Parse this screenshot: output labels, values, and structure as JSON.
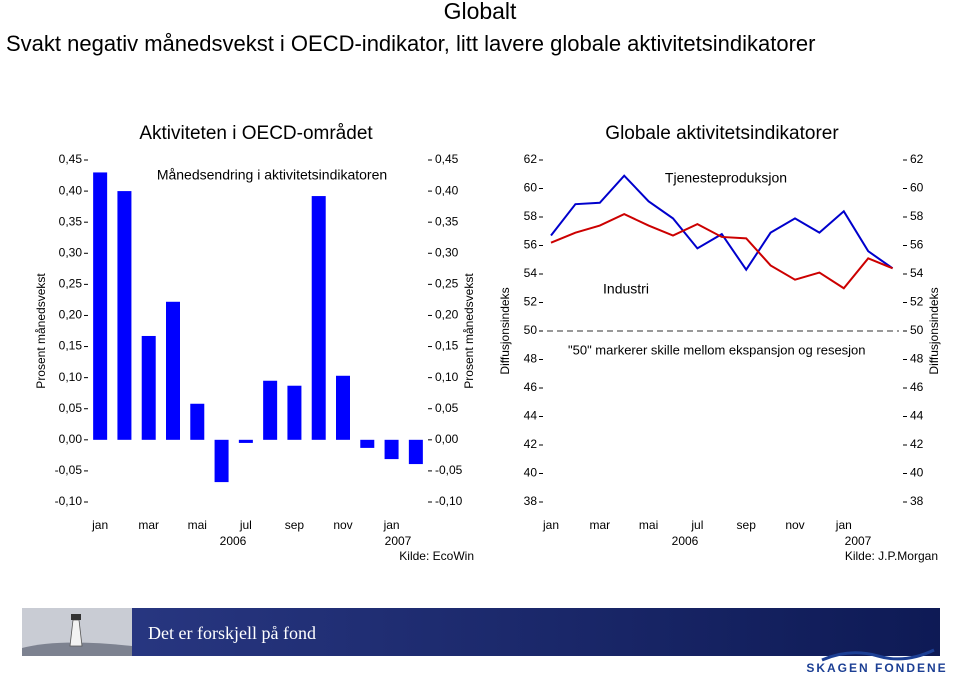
{
  "title": "Globalt",
  "subtitle": "Svakt negativ månedsvekst i OECD-indikator, litt lavere globale aktivitetsindikatorer",
  "chart_data": [
    {
      "type": "bar",
      "title": "Aktiviteten i OECD-området",
      "annotation": "Månedsendring i aktivitetsindikatoren",
      "ylabel": "Prosent månedsvekst",
      "y2label": "Prosent månedsvekst",
      "categories": [
        "jan",
        null,
        "mar",
        null,
        "mai",
        null,
        "jul",
        null,
        "sep",
        null,
        "nov",
        null,
        "jan",
        null
      ],
      "year_labels": [
        "2006",
        "2007"
      ],
      "source": "Kilde: EcoWin",
      "values": [
        0.43,
        0.4,
        0.167,
        0.222,
        0.058,
        -0.068,
        -0.005,
        0.095,
        0.087,
        0.392,
        0.103,
        -0.013,
        -0.031,
        -0.039
      ],
      "color": "#0000ff",
      "ylim": [
        -0.1,
        0.45
      ],
      "yticks": [
        {
          "value": 0.45,
          "label": "0,45"
        },
        {
          "value": 0.4,
          "label": "0,40"
        },
        {
          "value": 0.35,
          "label": "0,35"
        },
        {
          "value": 0.3,
          "label": "0,30"
        },
        {
          "value": 0.25,
          "label": "0,25"
        },
        {
          "value": 0.2,
          "label": "0,20"
        },
        {
          "value": 0.15,
          "label": "0,15"
        },
        {
          "value": 0.1,
          "label": "0,10"
        },
        {
          "value": 0.05,
          "label": "0,05"
        },
        {
          "value": 0,
          "label": "0,00"
        },
        {
          "value": -0.05,
          "label": "-0,05"
        },
        {
          "value": -0.1,
          "label": "-0,10"
        }
      ],
      "y2lim": [
        -0.1,
        0.45
      ],
      "y2ticks": [
        {
          "value": 0.45,
          "label": "0,45"
        },
        {
          "value": 0.4,
          "label": "0,40"
        },
        {
          "value": 0.35,
          "label": "0,35"
        },
        {
          "value": 0.3,
          "label": "0,30"
        },
        {
          "value": 0.25,
          "label": "0,25"
        },
        {
          "value": 0.2,
          "label": "0,20"
        },
        {
          "value": 0.15,
          "label": "0,15"
        },
        {
          "value": 0.1,
          "label": "0,10"
        },
        {
          "value": 0.05,
          "label": "0,05"
        },
        {
          "value": 0,
          "label": "0,00"
        },
        {
          "value": -0.05,
          "label": "-0,05"
        },
        {
          "value": -0.1,
          "label": "-0,10"
        }
      ]
    },
    {
      "type": "line",
      "title": "Globale aktivitetsindikatorer",
      "ylabel": "Diffusjonsindeks",
      "y2label": "Diffusjonsindeks",
      "categories": [
        "jan",
        null,
        "mar",
        null,
        "mai",
        null,
        "jul",
        null,
        "sep",
        null,
        "nov",
        null,
        "jan",
        null,
        null
      ],
      "year_labels": [
        "2006",
        "2007"
      ],
      "source": "Kilde: J.P.Morgan",
      "series": [
        {
          "name": "Tjenesteproduksjon",
          "color": "#0000cc",
          "values": [
            56.7,
            58.9,
            59.0,
            60.9,
            59.1,
            57.9,
            55.8,
            56.8,
            54.3,
            56.9,
            57.9,
            56.9,
            58.4,
            55.6,
            54.4
          ]
        },
        {
          "name": "Industri",
          "color": "#cc0000",
          "values": [
            56.2,
            56.9,
            57.4,
            58.2,
            57.4,
            56.7,
            57.5,
            56.6,
            56.5,
            54.6,
            53.6,
            54.1,
            53.0,
            55.1,
            54.4
          ]
        }
      ],
      "reference_line": 50,
      "reference_label": "\"50\" markerer skille mellom ekspansjon og resesjon",
      "ylim": [
        38,
        62
      ],
      "yticks": [
        62,
        60,
        58,
        56,
        54,
        52,
        50,
        48,
        46,
        44,
        42,
        40,
        38
      ],
      "y2lim": [
        38,
        62
      ],
      "y2ticks": [
        62,
        60,
        58,
        56,
        54,
        52,
        50,
        48,
        46,
        44,
        42,
        40,
        38
      ]
    }
  ],
  "footer": {
    "slogan": "Det er forskjell på fond",
    "logo": "SKAGEN FONDENE"
  }
}
